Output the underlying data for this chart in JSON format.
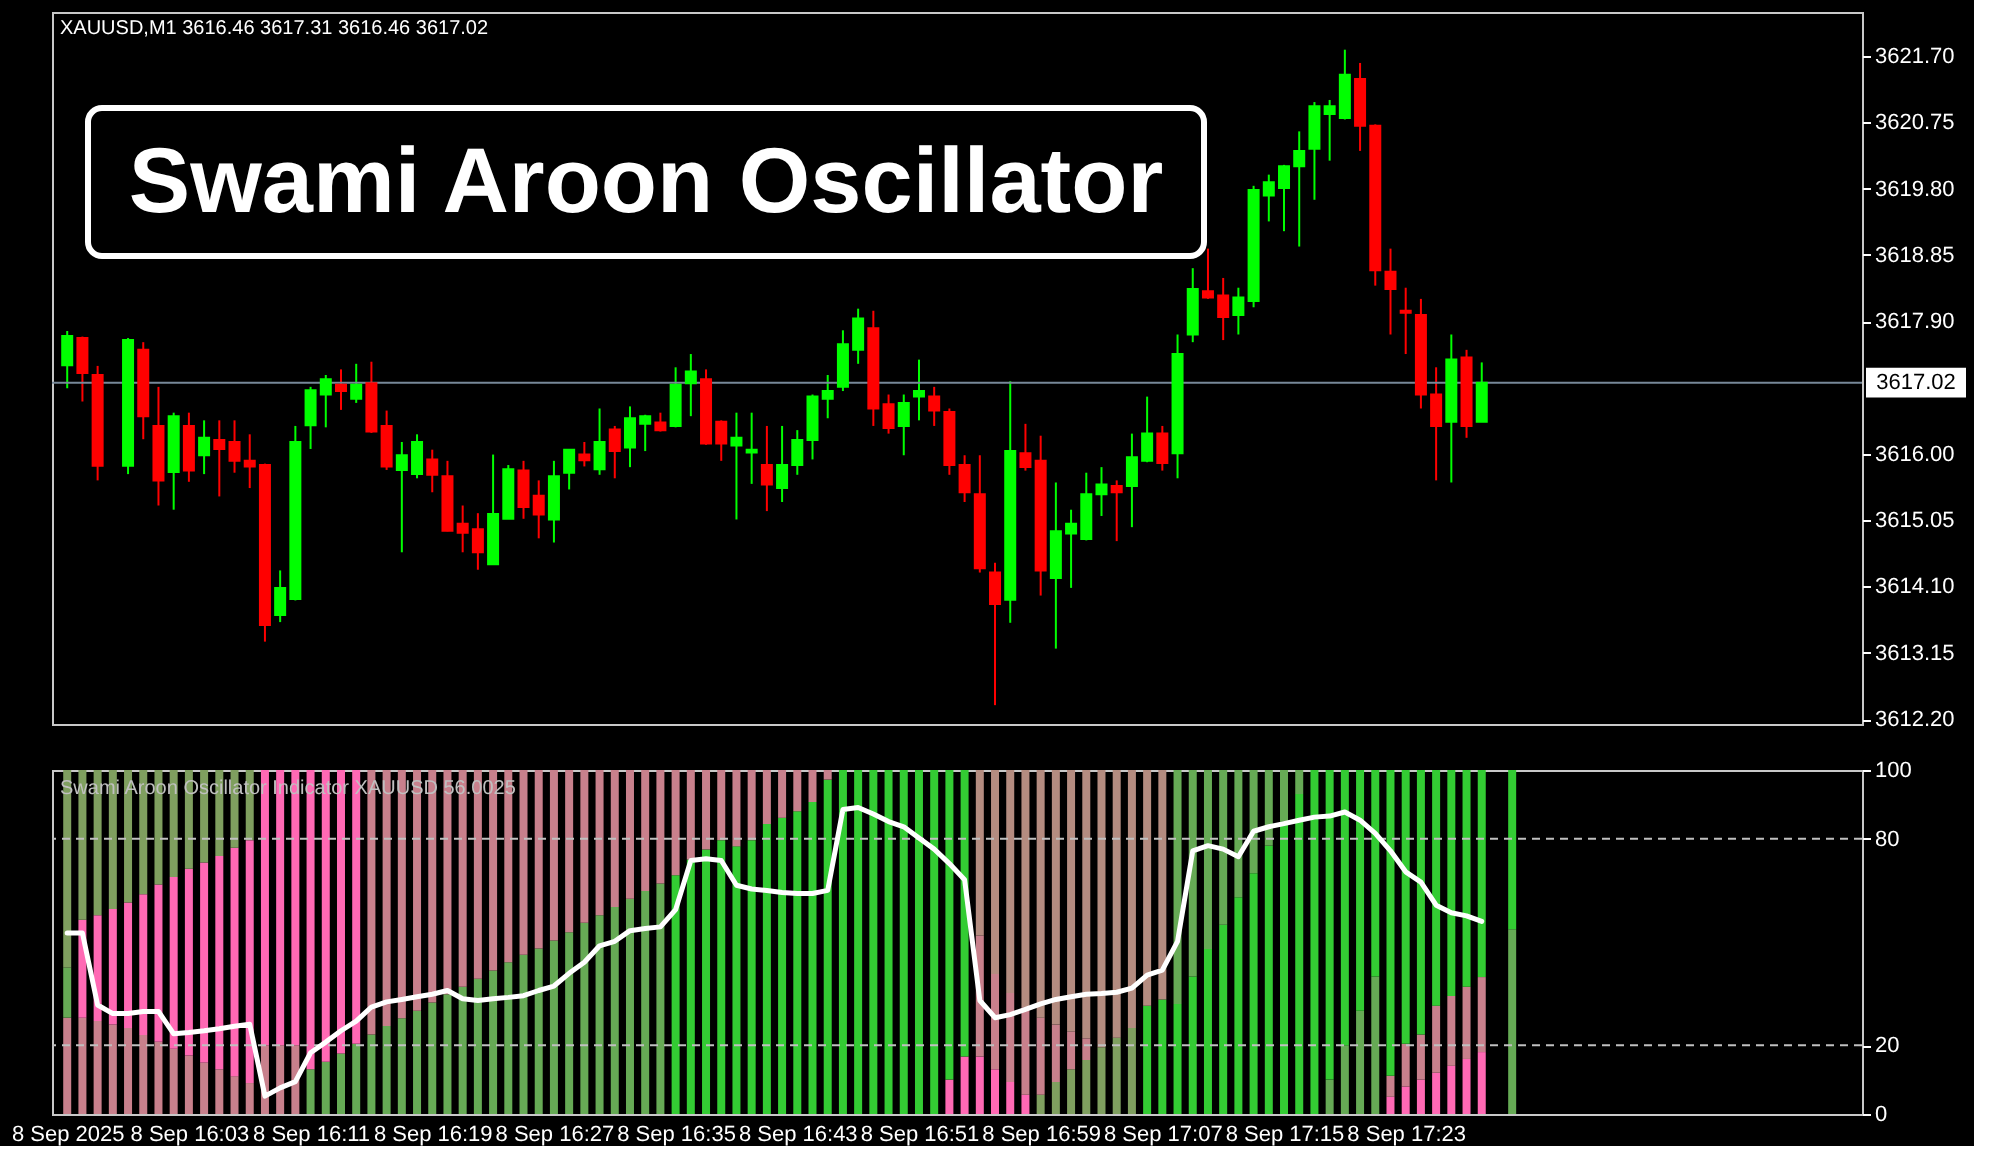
{
  "chart_data": [
    {
      "type": "candlestick",
      "title": "Swami Aroon Oscillator",
      "annotations": [
        "XAUUSD,M1  3616.46 3617.31 3616.46 3617.02"
      ],
      "x": [
        "2025-09-08T15:55",
        "2025-09-08T15:56",
        "2025-09-08T15:57",
        "2025-09-08T15:59",
        "2025-09-08T16:00",
        "2025-09-08T16:01",
        "2025-09-08T16:02",
        "2025-09-08T16:03",
        "2025-09-08T16:04",
        "2025-09-08T16:05",
        "2025-09-08T16:06",
        "2025-09-08T16:07",
        "2025-09-08T16:08",
        "2025-09-08T16:09",
        "2025-09-08T16:10",
        "2025-09-08T16:11",
        "2025-09-08T16:12",
        "2025-09-08T16:13",
        "2025-09-08T16:14",
        "2025-09-08T16:15",
        "2025-09-08T16:16",
        "2025-09-08T16:17",
        "2025-09-08T16:18",
        "2025-09-08T16:19",
        "2025-09-08T16:20",
        "2025-09-08T16:21",
        "2025-09-08T16:22",
        "2025-09-08T16:23",
        "2025-09-08T16:24",
        "2025-09-08T16:25",
        "2025-09-08T16:26",
        "2025-09-08T16:27",
        "2025-09-08T16:28",
        "2025-09-08T16:29",
        "2025-09-08T16:30",
        "2025-09-08T16:31",
        "2025-09-08T16:32",
        "2025-09-08T16:33",
        "2025-09-08T16:34",
        "2025-09-08T16:35",
        "2025-09-08T16:36",
        "2025-09-08T16:37",
        "2025-09-08T16:38",
        "2025-09-08T16:39",
        "2025-09-08T16:40",
        "2025-09-08T16:41",
        "2025-09-08T16:42",
        "2025-09-08T16:43",
        "2025-09-08T16:44",
        "2025-09-08T16:45",
        "2025-09-08T16:46",
        "2025-09-08T16:47",
        "2025-09-08T16:48",
        "2025-09-08T16:49",
        "2025-09-08T16:50",
        "2025-09-08T16:51",
        "2025-09-08T16:52",
        "2025-09-08T16:53",
        "2025-09-08T16:54",
        "2025-09-08T16:55",
        "2025-09-08T16:56",
        "2025-09-08T16:57",
        "2025-09-08T16:58",
        "2025-09-08T16:59",
        "2025-09-08T17:00",
        "2025-09-08T17:01",
        "2025-09-08T17:02",
        "2025-09-08T17:03",
        "2025-09-08T17:04",
        "2025-09-08T17:05",
        "2025-09-08T17:06",
        "2025-09-08T17:07",
        "2025-09-08T17:08",
        "2025-09-08T17:09",
        "2025-09-08T17:10",
        "2025-09-08T17:11",
        "2025-09-08T17:12",
        "2025-09-08T17:13",
        "2025-09-08T17:14",
        "2025-09-08T17:15",
        "2025-09-08T17:16",
        "2025-09-08T17:17",
        "2025-09-08T17:18",
        "2025-09-08T17:19",
        "2025-09-08T17:20",
        "2025-09-08T17:21",
        "2025-09-08T17:22",
        "2025-09-08T17:23",
        "2025-09-08T17:24",
        "2025-09-08T17:25",
        "2025-09-08T17:26",
        "2025-09-08T17:27",
        "2025-09-08T17:28"
      ],
      "ohlc": [
        [
          3617.27,
          3617.76,
          3616.94,
          3617.69
        ],
        [
          3617.66,
          3617.68,
          3616.75,
          3617.16
        ],
        [
          3617.13,
          3617.26,
          3615.62,
          3615.83
        ],
        [
          3615.83,
          3617.66,
          3615.71,
          3617.63
        ],
        [
          3617.49,
          3617.6,
          3616.21,
          3616.54
        ],
        [
          3616.4,
          3616.96,
          3615.26,
          3615.62
        ],
        [
          3615.74,
          3616.59,
          3615.2,
          3616.54
        ],
        [
          3616.4,
          3616.59,
          3615.6,
          3615.76
        ],
        [
          3615.98,
          3616.48,
          3615.71,
          3616.23
        ],
        [
          3616.2,
          3616.48,
          3615.39,
          3616.07
        ],
        [
          3616.17,
          3616.48,
          3615.73,
          3615.9
        ],
        [
          3615.9,
          3616.28,
          3615.51,
          3615.82
        ],
        [
          3615.84,
          3615.86,
          3613.31,
          3613.55
        ],
        [
          3613.69,
          3614.33,
          3613.59,
          3614.08
        ],
        [
          3613.92,
          3616.4,
          3613.9,
          3616.17
        ],
        [
          3616.41,
          3616.96,
          3616.07,
          3616.91
        ],
        [
          3616.85,
          3617.13,
          3616.38,
          3617.07
        ],
        [
          3616.99,
          3617.21,
          3616.63,
          3616.9
        ],
        [
          3616.79,
          3617.29,
          3616.73,
          3616.99
        ],
        [
          3617.01,
          3617.32,
          3616.3,
          3616.32
        ],
        [
          3616.4,
          3616.62,
          3615.77,
          3615.82
        ],
        [
          3615.77,
          3616.17,
          3614.59,
          3615.98
        ],
        [
          3615.71,
          3616.28,
          3615.65,
          3616.17
        ],
        [
          3615.92,
          3616.06,
          3615.45,
          3615.7
        ],
        [
          3615.68,
          3615.9,
          3614.89,
          3614.9
        ],
        [
          3615.0,
          3615.26,
          3614.59,
          3614.87
        ],
        [
          3614.92,
          3615.15,
          3614.34,
          3614.59
        ],
        [
          3614.42,
          3615.99,
          3614.42,
          3615.14
        ],
        [
          3615.07,
          3615.84,
          3615.07,
          3615.78
        ],
        [
          3615.76,
          3615.9,
          3615.07,
          3615.24
        ],
        [
          3615.4,
          3615.62,
          3614.79,
          3615.13
        ],
        [
          3615.06,
          3615.9,
          3614.73,
          3615.68
        ],
        [
          3615.73,
          3616.06,
          3615.49,
          3616.06
        ],
        [
          3615.99,
          3616.17,
          3615.82,
          3615.91
        ],
        [
          3615.78,
          3616.65,
          3615.7,
          3616.17
        ],
        [
          3616.35,
          3616.4,
          3615.65,
          3616.04
        ],
        [
          3616.09,
          3616.68,
          3615.81,
          3616.51
        ],
        [
          3616.43,
          3616.56,
          3616.04,
          3616.54
        ],
        [
          3616.45,
          3616.59,
          3616.32,
          3616.34
        ],
        [
          3616.4,
          3617.24,
          3616.38,
          3616.99
        ],
        [
          3617.01,
          3617.43,
          3616.54,
          3617.18
        ],
        [
          3617.07,
          3617.21,
          3616.13,
          3616.15
        ],
        [
          3616.46,
          3616.48,
          3615.9,
          3616.15
        ],
        [
          3616.12,
          3616.59,
          3615.06,
          3616.23
        ],
        [
          3616.02,
          3616.59,
          3615.57,
          3616.06
        ],
        [
          3615.84,
          3616.4,
          3615.18,
          3615.56
        ],
        [
          3615.51,
          3616.4,
          3615.31,
          3615.84
        ],
        [
          3615.84,
          3616.34,
          3615.7,
          3616.2
        ],
        [
          3616.2,
          3616.85,
          3615.92,
          3616.82
        ],
        [
          3616.79,
          3617.13,
          3616.51,
          3616.9
        ],
        [
          3616.96,
          3617.77,
          3616.9,
          3617.57
        ],
        [
          3617.49,
          3618.08,
          3617.29,
          3617.94
        ],
        [
          3617.8,
          3618.05,
          3616.4,
          3616.65
        ],
        [
          3616.71,
          3616.85,
          3616.29,
          3616.37
        ],
        [
          3616.4,
          3616.85,
          3615.98,
          3616.73
        ],
        [
          3616.82,
          3617.35,
          3616.48,
          3616.9
        ],
        [
          3616.82,
          3616.96,
          3616.4,
          3616.62
        ],
        [
          3616.6,
          3616.65,
          3615.7,
          3615.84
        ],
        [
          3615.84,
          3615.98,
          3615.31,
          3615.45
        ],
        [
          3615.42,
          3615.98,
          3614.3,
          3614.36
        ],
        [
          3614.3,
          3614.44,
          3612.4,
          3613.85
        ],
        [
          3613.91,
          3617.04,
          3613.58,
          3616.04
        ],
        [
          3616.01,
          3616.43,
          3615.76,
          3615.81
        ],
        [
          3615.9,
          3616.26,
          3613.97,
          3614.33
        ],
        [
          3614.22,
          3615.59,
          3613.21,
          3614.89
        ],
        [
          3614.86,
          3615.2,
          3614.08,
          3615.0
        ],
        [
          3614.78,
          3615.73,
          3614.76,
          3615.42
        ],
        [
          3615.42,
          3615.81,
          3615.11,
          3615.56
        ],
        [
          3615.54,
          3615.62,
          3614.75,
          3615.45
        ],
        [
          3615.54,
          3616.29,
          3614.95,
          3615.95
        ],
        [
          3615.9,
          3616.82,
          3615.88,
          3616.29
        ],
        [
          3616.29,
          3616.4,
          3615.76,
          3615.87
        ],
        [
          3616.01,
          3617.71,
          3615.65,
          3617.43
        ],
        [
          3617.71,
          3618.66,
          3617.6,
          3618.36
        ],
        [
          3618.33,
          3618.94,
          3618.22,
          3618.24
        ],
        [
          3618.27,
          3618.52,
          3617.63,
          3617.96
        ],
        [
          3617.99,
          3618.38,
          3617.71,
          3618.24
        ],
        [
          3618.19,
          3619.84,
          3618.1,
          3619.78
        ],
        [
          3619.7,
          3620.0,
          3619.33,
          3619.89
        ],
        [
          3619.81,
          3620.14,
          3619.19,
          3620.12
        ],
        [
          3620.12,
          3620.62,
          3618.97,
          3620.34
        ],
        [
          3620.37,
          3621.04,
          3619.64,
          3620.98
        ],
        [
          3620.87,
          3621.07,
          3620.2,
          3620.98
        ],
        [
          3620.81,
          3621.79,
          3620.79,
          3621.43
        ],
        [
          3621.37,
          3621.6,
          3620.34,
          3620.7
        ],
        [
          3620.7,
          3620.72,
          3618.41,
          3618.63
        ],
        [
          3618.61,
          3618.94,
          3617.71,
          3618.36
        ],
        [
          3618.05,
          3618.38,
          3617.43,
          3618.02
        ],
        [
          3617.99,
          3618.22,
          3616.65,
          3616.85
        ],
        [
          3616.85,
          3617.24,
          3615.62,
          3616.4
        ],
        [
          3616.46,
          3617.71,
          3615.59,
          3617.35
        ],
        [
          3617.38,
          3617.49,
          3616.23,
          3616.4
        ],
        [
          3616.46,
          3617.31,
          3616.46,
          3617.02
        ]
      ],
      "colors": [
        "#00ff00",
        "#ff0000",
        "#ff0000",
        "#00ff00",
        "#ff0000",
        "#ff0000",
        "#00ff00",
        "#ff0000",
        "#00ff00",
        "#ff0000",
        "#ff0000",
        "#ff0000",
        "#ff0000",
        "#00ff00",
        "#00ff00",
        "#00ff00",
        "#00ff00",
        "#ff0000",
        "#00ff00",
        "#ff0000",
        "#ff0000",
        "#00ff00",
        "#00ff00",
        "#ff0000",
        "#ff0000",
        "#ff0000",
        "#ff0000",
        "#00ff00",
        "#00ff00",
        "#ff0000",
        "#ff0000",
        "#00ff00",
        "#00ff00",
        "#ff0000",
        "#00ff00",
        "#ff0000",
        "#00ff00",
        "#00ff00",
        "#ff0000",
        "#00ff00",
        "#00ff00",
        "#ff0000",
        "#ff0000",
        "#00ff00",
        "#00ff00",
        "#ff0000",
        "#00ff00",
        "#00ff00",
        "#00ff00",
        "#00ff00",
        "#00ff00",
        "#00ff00",
        "#ff0000",
        "#ff0000",
        "#00ff00",
        "#00ff00",
        "#ff0000",
        "#ff0000",
        "#ff0000",
        "#ff0000",
        "#ff0000",
        "#00ff00",
        "#ff0000",
        "#ff0000",
        "#00ff00",
        "#00ff00",
        "#00ff00",
        "#00ff00",
        "#ff0000",
        "#00ff00",
        "#00ff00",
        "#ff0000",
        "#00ff00",
        "#00ff00",
        "#ff0000",
        "#ff0000",
        "#00ff00",
        "#00ff00",
        "#00ff00",
        "#00ff00",
        "#00ff00",
        "#00ff00",
        "#00ff00",
        "#00ff00",
        "#ff0000",
        "#ff0000",
        "#ff0000",
        "#ff0000",
        "#ff0000",
        "#ff0000",
        "#00ff00",
        "#ff0000",
        "#00ff00"
      ],
      "xlim": [
        "2025-09-08T15:54",
        "2025-09-08T17:53"
      ],
      "ylim": [
        3612.13,
        3622.33
      ],
      "yticks": [
        {
          "value": 3612.2,
          "label": "3612.20"
        },
        3613.15,
        {
          "value": 3614.1,
          "label": "3614.10"
        },
        3615.05,
        {
          "value": 3616.0,
          "label": "3616.00"
        },
        {
          "value": 3617.9,
          "label": "3617.90"
        },
        3618.85,
        {
          "value": 3619.8,
          "label": "3619.80"
        },
        3620.75,
        {
          "value": 3621.7,
          "label": "3621.70"
        }
      ],
      "ref_lines": [
        {
          "axis": "y",
          "value": 3617.02,
          "label": "3617.02",
          "color": "#778899"
        }
      ],
      "tick_labels": "y"
    },
    {
      "type": "bar",
      "stacked": true,
      "title": "Swami Aroon Oscillator Indicator XAUUSD 56.0025",
      "x": [
        "2025-09-08T15:55",
        "2025-09-08T15:56",
        "2025-09-08T15:57",
        "2025-09-08T15:58",
        "2025-09-08T15:59",
        "2025-09-08T16:00",
        "2025-09-08T16:01",
        "2025-09-08T16:02",
        "2025-09-08T16:03",
        "2025-09-08T16:04",
        "2025-09-08T16:05",
        "2025-09-08T16:06",
        "2025-09-08T16:07",
        "2025-09-08T16:08",
        "2025-09-08T16:09",
        "2025-09-08T16:10",
        "2025-09-08T16:11",
        "2025-09-08T16:12",
        "2025-09-08T16:13",
        "2025-09-08T16:14",
        "2025-09-08T16:15",
        "2025-09-08T16:16",
        "2025-09-08T16:17",
        "2025-09-08T16:18",
        "2025-09-08T16:19",
        "2025-09-08T16:20",
        "2025-09-08T16:21",
        "2025-09-08T16:22",
        "2025-09-08T16:23",
        "2025-09-08T16:24",
        "2025-09-08T16:25",
        "2025-09-08T16:26",
        "2025-09-08T16:27",
        "2025-09-08T16:28",
        "2025-09-08T16:29",
        "2025-09-08T16:30",
        "2025-09-08T16:31",
        "2025-09-08T16:32",
        "2025-09-08T16:33",
        "2025-09-08T16:34",
        "2025-09-08T16:35",
        "2025-09-08T16:36",
        "2025-09-08T16:37",
        "2025-09-08T16:38",
        "2025-09-08T16:39",
        "2025-09-08T16:40",
        "2025-09-08T16:41",
        "2025-09-08T16:42",
        "2025-09-08T16:43",
        "2025-09-08T16:44",
        "2025-09-08T16:45",
        "2025-09-08T16:46",
        "2025-09-08T16:47",
        "2025-09-08T16:48",
        "2025-09-08T16:49",
        "2025-09-08T16:50",
        "2025-09-08T16:51",
        "2025-09-08T16:52",
        "2025-09-08T16:53",
        "2025-09-08T16:54",
        "2025-09-08T16:55",
        "2025-09-08T16:56",
        "2025-09-08T16:57",
        "2025-09-08T16:58",
        "2025-09-08T16:59",
        "2025-09-08T17:00",
        "2025-09-08T17:01",
        "2025-09-08T17:02",
        "2025-09-08T17:03",
        "2025-09-08T17:04",
        "2025-09-08T17:05",
        "2025-09-08T17:06",
        "2025-09-08T17:07",
        "2025-09-08T17:08",
        "2025-09-08T17:09",
        "2025-09-08T17:10",
        "2025-09-08T17:11",
        "2025-09-08T17:12",
        "2025-09-08T17:13",
        "2025-09-08T17:14",
        "2025-09-08T17:15",
        "2025-09-08T17:16",
        "2025-09-08T17:17",
        "2025-09-08T17:18",
        "2025-09-08T17:19",
        "2025-09-08T17:20",
        "2025-09-08T17:21",
        "2025-09-08T17:22",
        "2025-09-08T17:23",
        "2025-09-08T17:24",
        "2025-09-08T17:25",
        "2025-09-08T17:26",
        "2025-09-08T17:27",
        "2025-09-08T17:28",
        "2025-09-08T17:29",
        "2025-09-08T17:30"
      ],
      "series": [
        {
          "values": [
            28,
            28,
            27,
            26,
            25,
            23,
            21,
            19,
            17,
            15,
            13,
            11,
            9,
            20,
            20,
            20,
            13.0,
            15.2,
            17.6,
            20.4,
            23.1,
            25.6,
            27.8,
            30.0,
            32.4,
            34.8,
            37.0,
            39.3,
            41.7,
            44.1,
            46.3,
            48.1,
            50.4,
            52.8,
            55.6,
            57.8,
            60.2,
            62.6,
            64.8,
            67.0,
            69.4,
            74.0,
            76.9,
            79.6,
            77.8,
            79.6,
            84.3,
            86.1,
            88.0,
            90.7,
            97.2,
            100,
            100,
            100,
            100,
            100,
            100,
            100,
            10,
            16.7,
            16.7,
            13,
            9.3,
            5.6,
            5.6,
            9.3,
            13,
            15.7,
            19.4,
            22.2,
            25,
            31.5,
            33.3,
            32,
            40,
            48,
            55,
            63,
            70,
            78,
            85,
            93,
            100,
            10,
            20,
            30,
            40,
            5,
            8,
            10,
            12,
            14,
            16,
            18,
            null,
            53.7
          ],
          "colors": [
            "#c8808c",
            "#c8808c",
            "#c8808c",
            "#c8808c",
            "#c8808c",
            "#c8808c",
            "#c8808c",
            "#c8808c",
            "#c8808c",
            "#c8808c",
            "#c8808c",
            "#c8808c",
            "#c8808c",
            "#c8808c",
            "#c8808c",
            "#c8808c",
            "#66aa55",
            "#66aa55",
            "#66aa55",
            "#66aa55",
            "#66aa55",
            "#66aa55",
            "#66aa55",
            "#66aa55",
            "#66aa55",
            "#66aa55",
            "#66aa55",
            "#66aa55",
            "#66aa55",
            "#66aa55",
            "#66aa55",
            "#66aa55",
            "#66aa55",
            "#66aa55",
            "#66aa55",
            "#66aa55",
            "#66aa55",
            "#66aa55",
            "#66aa55",
            "#66aa55",
            "#33cc33",
            "#33cc33",
            "#33cc33",
            "#33cc33",
            "#33cc33",
            "#33cc33",
            "#33cc33",
            "#33cc33",
            "#33cc33",
            "#33cc33",
            "#33cc33",
            "#33cc33",
            "#33cc33",
            "#33cc33",
            "#33cc33",
            "#33cc33",
            "#33cc33",
            "#33cc33",
            "#ff69b4",
            "#ff69b4",
            "#ff69b4",
            "#ff69b4",
            "#ff69b4",
            "#ff69b4",
            "#7f9f5f",
            "#7f9f5f",
            "#7f9f5f",
            "#7f9f5f",
            "#7f9f5f",
            "#7f9f5f",
            "#7f9f5f",
            "#33cc33",
            "#33cc33",
            "#33cc33",
            "#33cc33",
            "#33cc33",
            "#33cc33",
            "#33cc33",
            "#33cc33",
            "#33cc33",
            "#33cc33",
            "#33cc33",
            "#33cc33",
            "#66aa55",
            "#66aa55",
            "#66aa55",
            "#66aa55",
            "#ff69b4",
            "#ff69b4",
            "#ff69b4",
            "#ff69b4",
            "#ff69b4",
            "#ff69b4",
            "#ff69b4",
            null,
            "#66aa55"
          ]
        },
        {
          "values": [
            14.6,
            28.5,
            30.8,
            33.6,
            36.5,
            40.9,
            45.7,
            49.9,
            54.3,
            58.1,
            62.0,
            66.4,
            70.6,
            80,
            80,
            80,
            87.0,
            84.8,
            82.4,
            79.6,
            76.9,
            74.4,
            72.2,
            70.0,
            67.6,
            65.2,
            63.0,
            60.7,
            58.3,
            55.9,
            53.7,
            51.9,
            49.6,
            47.2,
            44.4,
            42.2,
            39.8,
            37.4,
            35.2,
            33.0,
            30.6,
            26.0,
            23.1,
            20.4,
            22.2,
            20.4,
            15.7,
            13.9,
            12.0,
            9.3,
            2.8,
            null,
            null,
            null,
            null,
            null,
            null,
            null,
            90,
            83.3,
            35.2,
            27.7,
            25.9,
            25.4,
            22.4,
            16.7,
            11,
            6.3,
            80.6,
            77.8,
            75,
            68.5,
            66.7,
            68,
            60,
            52,
            45,
            37,
            30,
            22,
            15,
            7,
            null,
            90,
            80,
            70,
            60,
            6.1,
            12.4,
            13.1,
            19.5,
            20.3,
            21.0,
            21.8,
            null,
            46.3
          ],
          "colors": [
            "#66aa55",
            "#ff69b4",
            "#ff69b4",
            "#ff69b4",
            "#ff69b4",
            "#ff69b4",
            "#ff69b4",
            "#ff69b4",
            "#ff69b4",
            "#ff69b4",
            "#ff69b4",
            "#ff69b4",
            "#ff69b4",
            "#ff69b4",
            "#ff69b4",
            "#ff69b4",
            "#ff69b4",
            "#ff69b4",
            "#ff69b4",
            "#ff69b4",
            "#c8808c",
            "#c8808c",
            "#c8808c",
            "#c8808c",
            "#c8808c",
            "#c8808c",
            "#c8808c",
            "#c8808c",
            "#c8808c",
            "#c8808c",
            "#c8808c",
            "#c8808c",
            "#c8808c",
            "#c8808c",
            "#c8808c",
            "#c8808c",
            "#c8808c",
            "#c8808c",
            "#c8808c",
            "#c8808c",
            "#c8808c",
            "#c8808c",
            "#c8808c",
            "#c8808c",
            "#c8808c",
            "#c8808c",
            "#c8808c",
            "#c8808c",
            "#c8808c",
            "#c8808c",
            "#c8808c",
            null,
            null,
            null,
            null,
            null,
            null,
            null,
            "#33cc33",
            "#33cc33",
            "#c8808c",
            "#c8808c",
            "#c8808c",
            "#c8808c",
            "#c8808c",
            "#c8808c",
            "#c8808c",
            "#c8808c",
            "#b48c80",
            "#b48c80",
            "#b48c80",
            "#b48c80",
            "#b48c80",
            "#66aa55",
            "#66aa55",
            "#66aa55",
            "#66aa55",
            "#66aa55",
            "#66aa55",
            "#66aa55",
            "#66aa55",
            "#66aa55",
            null,
            "#33cc33",
            "#33cc33",
            "#33cc33",
            "#33cc33",
            "#c8808c",
            "#c8808c",
            "#c8808c",
            "#c8808c",
            "#c8808c",
            "#c8808c",
            "#c8808c",
            null,
            "#33cc33"
          ]
        },
        {
          "values": [
            57.4,
            43.5,
            42.2,
            40.4,
            38.5,
            36.1,
            33.3,
            31.1,
            28.7,
            26.9,
            25.0,
            22.6,
            20.4,
            null,
            null,
            null,
            null,
            null,
            null,
            null,
            null,
            null,
            null,
            null,
            null,
            null,
            null,
            null,
            null,
            null,
            null,
            null,
            null,
            null,
            null,
            null,
            null,
            null,
            null,
            null,
            null,
            null,
            null,
            null,
            null,
            null,
            null,
            null,
            null,
            null,
            null,
            null,
            null,
            null,
            null,
            null,
            null,
            null,
            null,
            null,
            48.1,
            59.3,
            64.8,
            69.0,
            72.0,
            74.0,
            76,
            78,
            null,
            null,
            null,
            null,
            null,
            null,
            null,
            null,
            null,
            null,
            null,
            null,
            null,
            null,
            null,
            null,
            null,
            null,
            null,
            88.9,
            79.6,
            76.9,
            68.5,
            65.7,
            63.0,
            60.2,
            null,
            null
          ],
          "colors": [
            "#7f9f5f",
            "#7f9f5f",
            "#7f9f5f",
            "#7f9f5f",
            "#7f9f5f",
            "#7f9f5f",
            "#7f9f5f",
            "#7f9f5f",
            "#7f9f5f",
            "#7f9f5f",
            "#7f9f5f",
            "#7f9f5f",
            "#7f9f5f",
            null,
            null,
            null,
            null,
            null,
            null,
            null,
            null,
            null,
            null,
            null,
            null,
            null,
            null,
            null,
            null,
            null,
            null,
            null,
            null,
            null,
            null,
            null,
            null,
            null,
            null,
            null,
            null,
            null,
            null,
            null,
            null,
            null,
            null,
            null,
            null,
            null,
            null,
            null,
            null,
            null,
            null,
            null,
            null,
            null,
            null,
            null,
            "#b48c80",
            "#b48c80",
            "#b48c80",
            "#b48c80",
            "#b48c80",
            "#b48c80",
            "#b48c80",
            "#b48c80",
            null,
            null,
            null,
            null,
            null,
            null,
            null,
            null,
            null,
            null,
            null,
            null,
            null,
            null,
            null,
            null,
            null,
            null,
            null,
            "#33cc33",
            "#33cc33",
            "#33cc33",
            "#33cc33",
            "#33cc33",
            "#33cc33",
            "#33cc33",
            null,
            null
          ]
        },
        {
          "type": "line",
          "color": "#ffffff",
          "values": [
            52.6,
            52.6,
            31.7,
            29.2,
            29.2,
            29.8,
            29.8,
            23.3,
            23.7,
            24.2,
            24.8,
            25.5,
            26.1,
            5.2,
            7.6,
            9.4,
            17.8,
            20.9,
            24.2,
            27.0,
            31.1,
            32.6,
            33.3,
            34.1,
            34.8,
            35.9,
            33.5,
            33.0,
            33.5,
            33.9,
            34.4,
            35.9,
            37.2,
            40.9,
            44.1,
            48.9,
            50.2,
            53.3,
            53.9,
            54.4,
            59.4,
            73.7,
            74.2,
            73.7,
            66.5,
            65.4,
            65.0,
            64.4,
            64.1,
            64.1,
            65.0,
            88.5,
            89.1,
            87.2,
            85.0,
            83.5,
            80.2,
            77.0,
            72.8,
            68.1,
            33.0,
            28.0,
            28.9,
            30.4,
            32.0,
            33.3,
            34.1,
            34.8,
            35.0,
            35.4,
            36.6,
            40.4,
            41.8,
            50.2,
            76.5,
            78.0,
            77.0,
            74.8,
            82.2,
            83.5,
            84.4,
            85.4,
            86.3,
            86.6,
            87.8,
            85.4,
            81.6,
            76.5,
            70.4,
            67.4,
            60.7,
            58.5,
            57.6,
            56.0,
            null,
            null
          ]
        }
      ],
      "xlim": [
        "2025-09-08T15:54",
        "2025-09-08T17:53"
      ],
      "xticks": [
        {
          "value": "2025-09-08T15:55",
          "label": "8 Sep 2025"
        },
        {
          "value": "2025-09-08T16:03",
          "label": "8 Sep 16:03"
        },
        {
          "value": "2025-09-08T16:11",
          "label": "8 Sep 16:11"
        },
        {
          "value": "2025-09-08T16:19",
          "label": "8 Sep 16:19"
        },
        {
          "value": "2025-09-08T16:27",
          "label": "8 Sep 16:27"
        },
        {
          "value": "2025-09-08T16:35",
          "label": "8 Sep 16:35"
        },
        {
          "value": "2025-09-08T16:43",
          "label": "8 Sep 16:43"
        },
        {
          "value": "2025-09-08T16:51",
          "label": "8 Sep 16:51"
        },
        {
          "value": "2025-09-08T16:59",
          "label": "8 Sep 16:59"
        },
        {
          "value": "2025-09-08T17:07",
          "label": "8 Sep 17:07"
        },
        {
          "value": "2025-09-08T17:15",
          "label": "8 Sep 17:15"
        },
        {
          "value": "2025-09-08T17:23",
          "label": "8 Sep 17:23"
        }
      ],
      "ylim": [
        0,
        100
      ],
      "yticks": [
        0,
        20,
        80,
        100
      ],
      "ref_lines": [
        {
          "axis": "y",
          "value": 80,
          "color": "#c0c0c0",
          "line_style": "dashed"
        },
        {
          "axis": "y",
          "value": 20,
          "color": "#c0c0c0",
          "line_style": "dashed"
        }
      ]
    }
  ]
}
